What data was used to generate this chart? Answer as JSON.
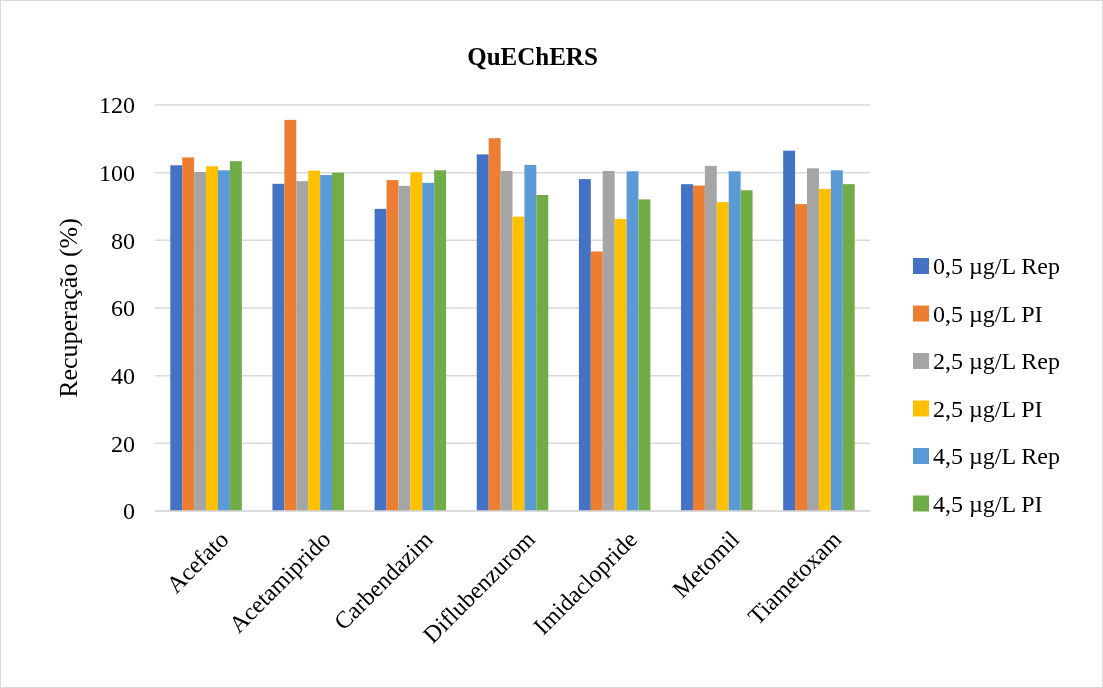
{
  "chart_data": {
    "type": "bar",
    "title": "QuEChERS",
    "ylabel": "Recuperação (%)",
    "categories": [
      "Acefato",
      "Acetamiprido",
      "Carbendazim",
      "Diflubenzurom",
      "Imidaclopride",
      "Metomil",
      "Tiametoxam"
    ],
    "series": [
      {
        "name": "0,5 µg/L Rep",
        "color": "#4472c4",
        "values": [
          102.2,
          96.7,
          89.3,
          105.4,
          98.1,
          96.6,
          106.5
        ]
      },
      {
        "name": "0,5 µg/L PI",
        "color": "#ed7d31",
        "values": [
          104.5,
          115.6,
          97.8,
          110.2,
          76.7,
          96.2,
          90.7
        ]
      },
      {
        "name": "2,5 µg/L Rep",
        "color": "#a5a5a5",
        "values": [
          100.2,
          97.5,
          96.1,
          100.5,
          100.5,
          102.0,
          101.3
        ]
      },
      {
        "name": "2,5 µg/L PI",
        "color": "#ffc000",
        "values": [
          101.9,
          100.6,
          100.1,
          87.0,
          86.3,
          91.3,
          95.2
        ]
      },
      {
        "name": "4,5 µg/L Rep",
        "color": "#5b9bd5",
        "values": [
          100.7,
          99.3,
          97.0,
          102.3,
          100.4,
          100.4,
          100.7
        ]
      },
      {
        "name": "4,5 µg/L PI",
        "color": "#70ad47",
        "values": [
          103.4,
          100.0,
          100.7,
          93.4,
          92.1,
          94.8,
          96.6
        ]
      }
    ],
    "ylim": [
      0,
      120
    ],
    "yticks": [
      0,
      20,
      40,
      60,
      80,
      100,
      120
    ],
    "grid": "y",
    "legend": "right"
  }
}
